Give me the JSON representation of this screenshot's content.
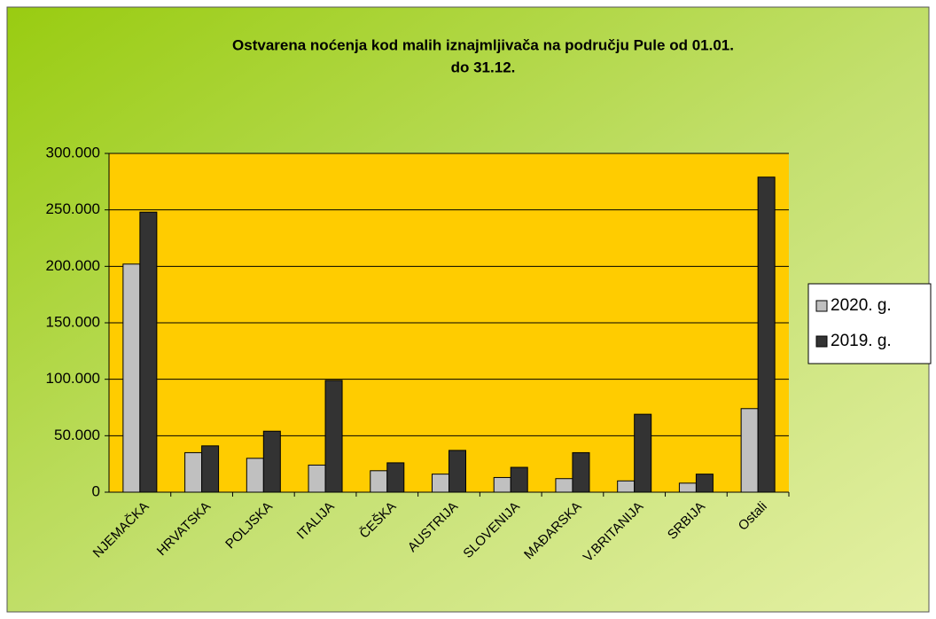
{
  "chart_data": {
    "type": "bar",
    "title": "Ostvarena noćenja kod malih iznajmljivača na području Pule od 01.01.",
    "subtitle": "do 31.12.",
    "categories": [
      "NJEMAČKA",
      "HRVATSKA",
      "POLJSKA",
      "ITALIJA",
      "ČEŠKA",
      "AUSTRIJA",
      "SLOVENIJA",
      "MAĐARSKA",
      "V.BRITANIJA",
      "SRBIJA",
      "Ostali"
    ],
    "series": [
      {
        "name": "2020. g.",
        "color": "#c0c0c0",
        "values": [
          202000,
          35000,
          30000,
          24000,
          19000,
          16000,
          13000,
          12000,
          10000,
          8000,
          74000
        ]
      },
      {
        "name": "2019. g.",
        "color": "#333333",
        "values": [
          248000,
          41000,
          54000,
          99000,
          26000,
          37000,
          22000,
          35000,
          69000,
          16000,
          279000
        ]
      }
    ],
    "ylim": [
      0,
      300000
    ],
    "yticks": [
      0,
      {
        "value": 50000,
        "label": "50.000"
      },
      {
        "value": 100000,
        "label": "100.000"
      },
      {
        "value": 150000,
        "label": "150.000"
      },
      {
        "value": 200000,
        "label": "200.000"
      },
      {
        "value": 250000,
        "label": "250.000"
      },
      {
        "value": 300000,
        "label": "300.000"
      }
    ],
    "grid": true,
    "legend": "right",
    "plot_background": "#ffcc00"
  }
}
